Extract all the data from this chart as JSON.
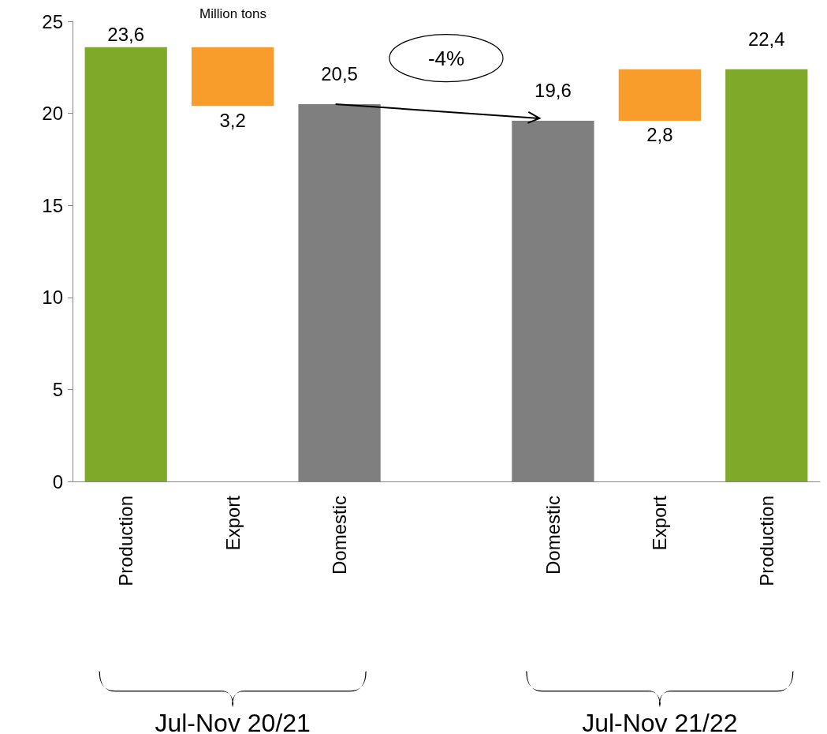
{
  "chart_data": {
    "type": "bar",
    "categories": [
      "Production",
      "Export",
      "Domestic",
      null,
      "Domestic",
      "Export",
      "Production"
    ],
    "values": [
      23.6,
      3.2,
      20.5,
      null,
      19.6,
      2.8,
      22.4
    ],
    "base": [
      0,
      20.4,
      0,
      null,
      0,
      19.6,
      0
    ],
    "colors": [
      "#7fa928",
      "#f89c2c",
      "#7f7f7f",
      null,
      "#7f7f7f",
      "#f89c2c",
      "#7fa928"
    ],
    "value_labels": [
      "23,6",
      "3,2",
      "20,5",
      null,
      "19,6",
      "2,8",
      "22,4"
    ],
    "ylim": [
      0,
      25
    ],
    "yticks": [
      0,
      5,
      10,
      15,
      20,
      25
    ],
    "grid": false,
    "annotations": [
      "Million tons",
      "-4%",
      "Jul-Nov 20/21",
      "Jul-Nov 21/22"
    ]
  }
}
